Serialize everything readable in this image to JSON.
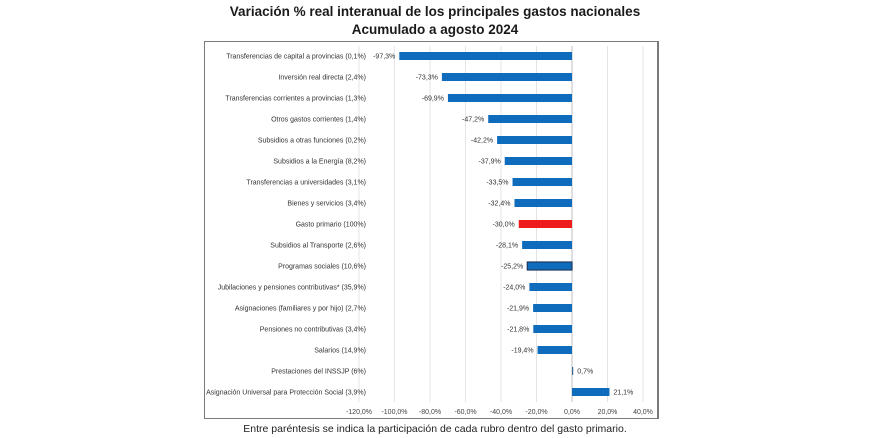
{
  "chart_data": {
    "type": "bar",
    "orientation": "horizontal",
    "title": "Variación % real interanual de los principales gastos nacionales",
    "subtitle": "Acumulado a agosto 2024",
    "xlabel": "",
    "ylabel": "",
    "xlim": [
      -120,
      40
    ],
    "xticks": [
      -120,
      -100,
      -80,
      -60,
      -40,
      -20,
      0,
      20,
      40
    ],
    "xtick_labels": [
      "-120,0%",
      "-100,0%",
      "-80,0%",
      "-60,0%",
      "-40,0%",
      "-20,0%",
      "0,0%",
      "20,0%",
      "40,0%"
    ],
    "grid": true,
    "legend": "none",
    "categories": [
      "Transferencias de capital a provincias (0,1%)",
      "Inversión real directa (2,4%)",
      "Transferencias corrientes a provincias (1,3%)",
      "Otros gastos corrientes (1,4%)",
      "Subsidios a otras funciones (0,2%)",
      "Subsidios a la Energía (8,2%)",
      "Transferencias a universidades (3,1%)",
      "Bienes y servicios (3,4%)",
      "Gasto primario (100%)",
      "Subsidios al Transporte (2,6%)",
      "Programas sociales (10,6%)",
      "Jubilaciones y pensiones contributivas* (35,9%)",
      "Asignaciones (familiares y por hijo) (2,7%)",
      "Pensiones no contributivas (3,4%)",
      "Salarios (14,9%)",
      "Prestaciones del INSSJP (6%)",
      "Asignación Universal para Protección Social (3,9%)"
    ],
    "values": [
      -97.3,
      -73.3,
      -69.9,
      -47.2,
      -42.2,
      -37.9,
      -33.5,
      -32.4,
      -30.0,
      -28.1,
      -25.2,
      -24.0,
      -21.9,
      -21.8,
      -19.4,
      0.7,
      21.1
    ],
    "value_labels": [
      "-97,3%",
      "-73,3%",
      "-69,9%",
      "-47,2%",
      "-42,2%",
      "-37,9%",
      "-33,5%",
      "-32,4%",
      "-30,0%",
      "-28,1%",
      "-25,2%",
      "-24,0%",
      "-21,9%",
      "-21,8%",
      "-19,4%",
      "0,7%",
      "21,1%"
    ],
    "colors": {
      "default": "#0f6cbd",
      "highlight": "#ee1c1c",
      "outline": "#1f3a5f",
      "grid": "#e4e4e4",
      "zero_line": "#bfbfbf"
    },
    "highlight_index": 8,
    "outlined_index": 10,
    "footnote": "Entre paréntesis se indica la participación de cada rubro dentro del gasto primario."
  }
}
